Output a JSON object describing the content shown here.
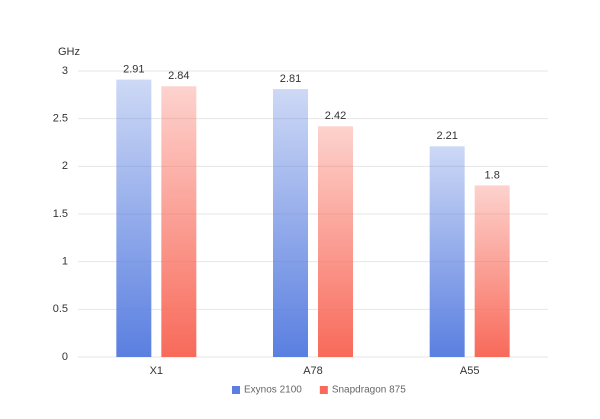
{
  "chart_data": {
    "type": "bar",
    "y_label": "GHz",
    "categories": [
      "X1",
      "A78",
      "A55"
    ],
    "series": [
      {
        "name": "Exynos 2100",
        "color": "#5a7fe0",
        "values": [
          2.91,
          2.81,
          2.21
        ]
      },
      {
        "name": "Snapdragon 875",
        "color": "#f86a5a",
        "values": [
          2.84,
          2.42,
          1.8
        ]
      }
    ],
    "ylim": [
      0,
      3
    ],
    "yticks": [
      0,
      0.5,
      1,
      1.5,
      2,
      2.5,
      3
    ],
    "grid": true,
    "legend": "bottom"
  }
}
